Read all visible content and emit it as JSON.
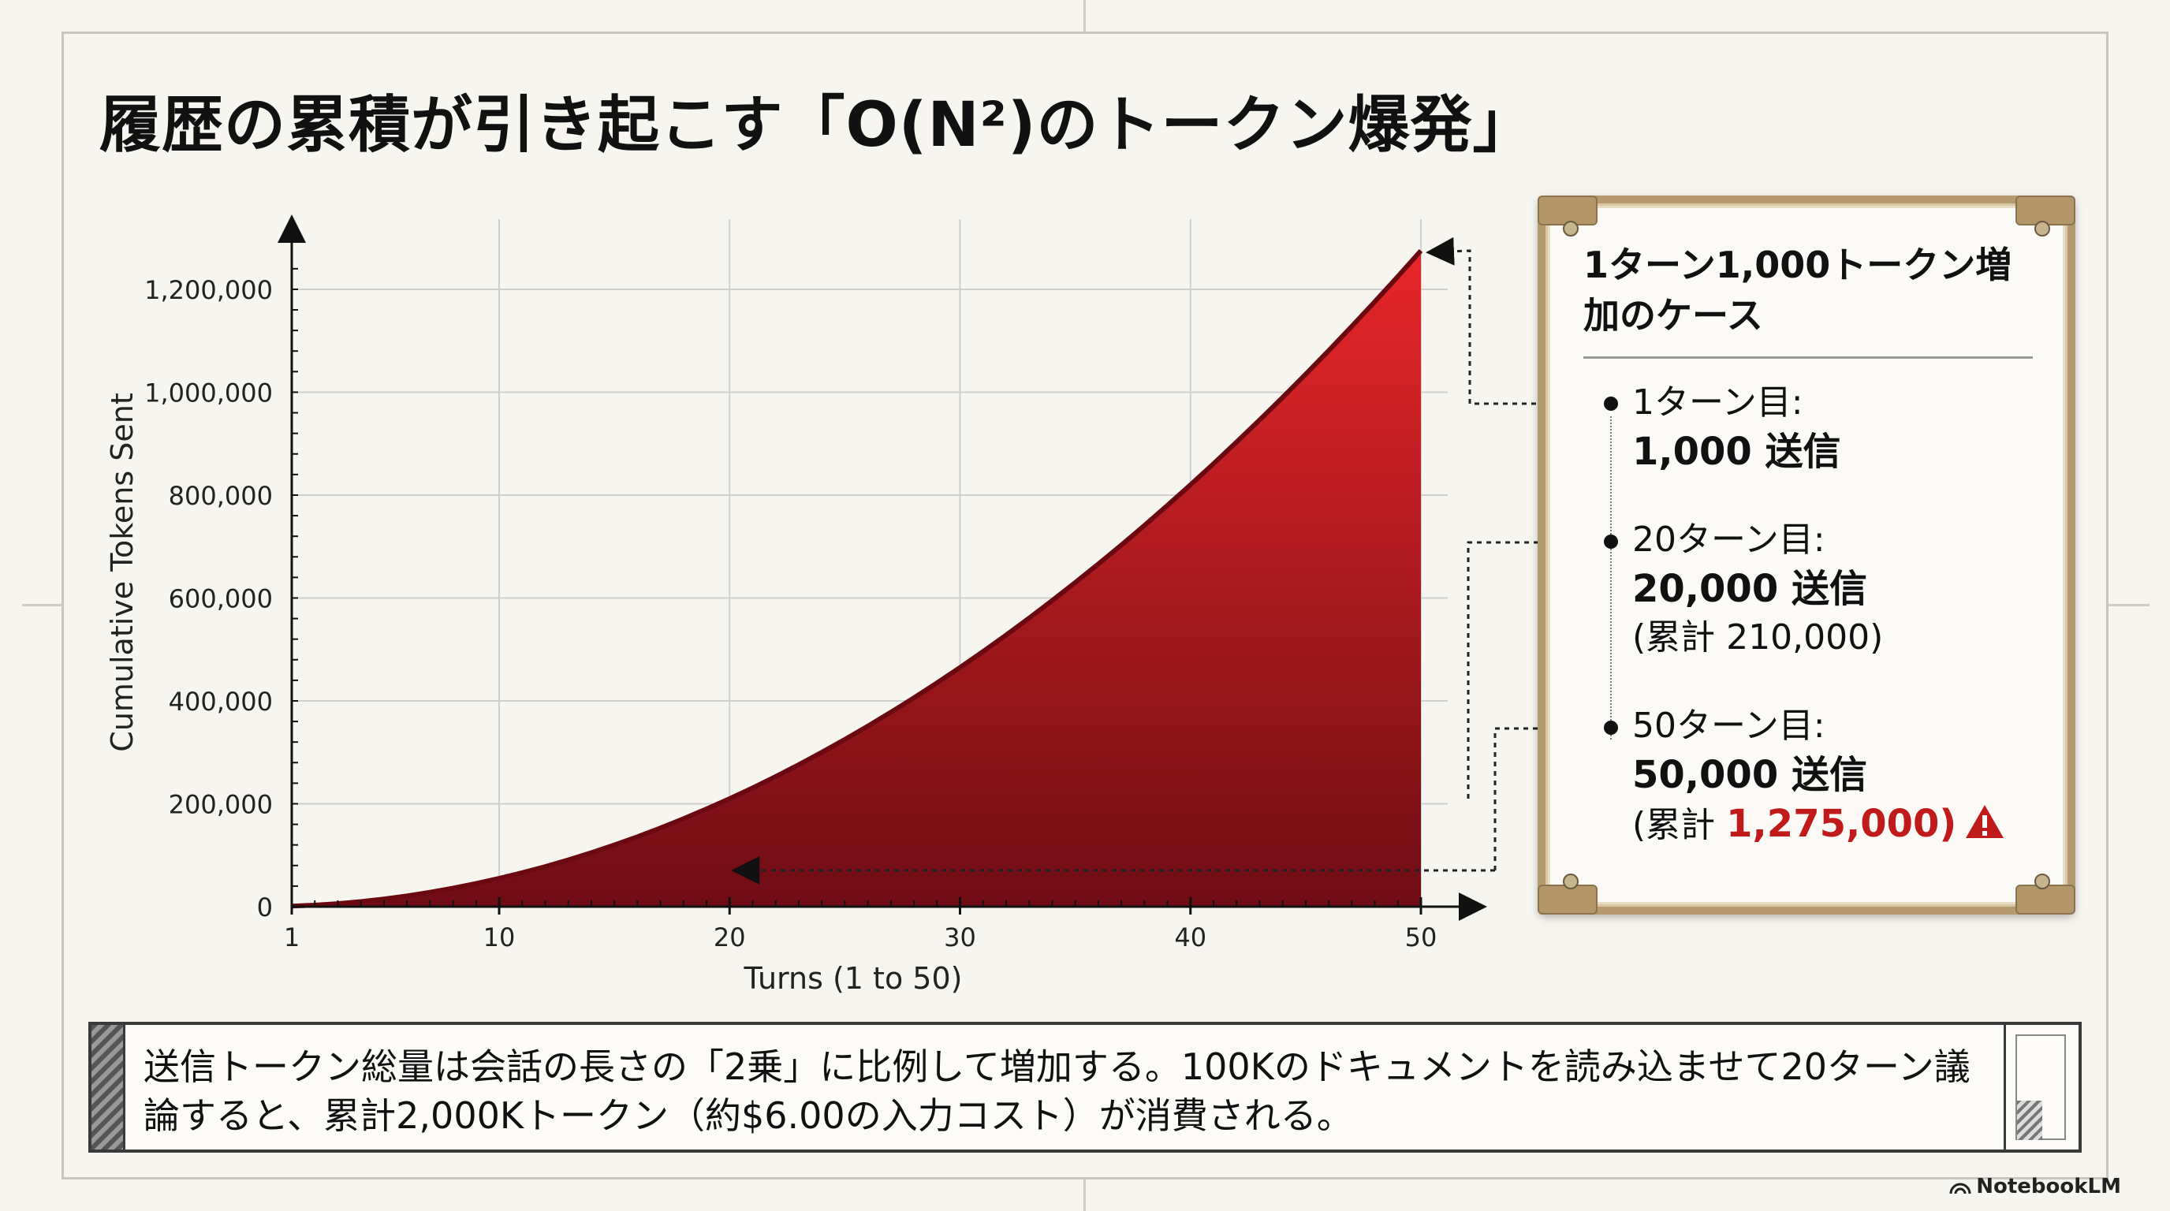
{
  "title": "履歴の累積が引き起こす「O(N²)のトークン爆発」",
  "chart_data": {
    "type": "area",
    "xlabel": "Turns (1 to 50)",
    "ylabel": "Cumulative Tokens Sent",
    "xlim": [
      1,
      50
    ],
    "ylim": [
      0,
      1275000
    ],
    "x_ticks": [
      1,
      10,
      20,
      30,
      40,
      50
    ],
    "x_tick_labels": [
      "1",
      "10",
      "20",
      "30",
      "40",
      "50"
    ],
    "y_ticks": [
      0,
      200000,
      400000,
      600000,
      800000,
      1000000,
      1200000
    ],
    "y_tick_labels": [
      "0",
      "200,000",
      "400,000",
      "600,000",
      "800,000",
      "1,000,000",
      "1,200,000"
    ],
    "tokens_per_turn": 1000,
    "grid": true,
    "highlight_points": [
      {
        "x": 20,
        "y": 210000
      },
      {
        "x": 50,
        "y": 1275000
      }
    ],
    "colors": {
      "fill_top": "#e8262a",
      "fill_bottom": "#6e0d14",
      "line": "#6a0a10"
    }
  },
  "card": {
    "heading": "1ターン1,000トークン増加のケース",
    "items": [
      {
        "label": "1ターン目:",
        "value": "1,000 送信",
        "note": ""
      },
      {
        "label": "20ターン目:",
        "value": "20,000 送信",
        "note": "(累計 210,000)"
      },
      {
        "label": "50ターン目:",
        "value": "50,000 送信",
        "note_prefix": "(累計 ",
        "note_highlight": "1,275,000)"
      }
    ],
    "warning_color": "#c01a1a"
  },
  "note": {
    "text": "送信トークン総量は会話の長さの「2乗」に比例して増加する。100Kのドキュメントを読み込ませて20ターン議論すると、累計2,000Kトークン（約$6.00の入力コスト）が消費される。"
  },
  "brand": "NotebookLM"
}
